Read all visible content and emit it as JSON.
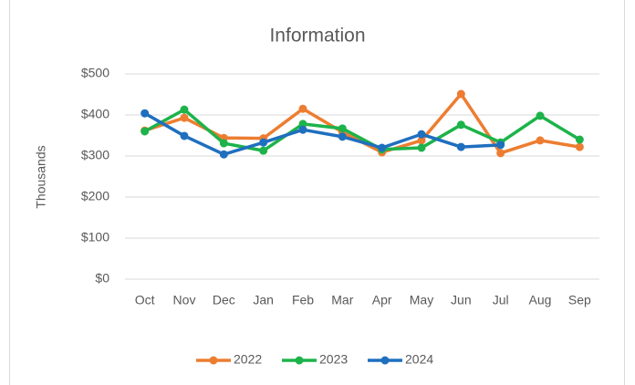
{
  "chart_data": {
    "type": "line",
    "title": "Information",
    "y_label": "Thousands",
    "categories": [
      "Oct",
      "Nov",
      "Dec",
      "Jan",
      "Feb",
      "Mar",
      "Apr",
      "May",
      "Jun",
      "Jul",
      "Aug",
      "Sep"
    ],
    "series": [
      {
        "name": "2022",
        "color": "#ed7d31",
        "values": [
          362,
          393,
          344,
          343,
          415,
          358,
          309,
          338,
          451,
          307,
          338,
          322
        ]
      },
      {
        "name": "2023",
        "color": "#1db34a",
        "values": [
          360,
          413,
          331,
          313,
          378,
          367,
          316,
          320,
          376,
          333,
          398,
          340
        ]
      },
      {
        "name": "2024",
        "color": "#1f6fbf",
        "values": [
          404,
          349,
          304,
          333,
          364,
          347,
          320,
          353,
          322,
          327,
          null,
          null
        ]
      }
    ],
    "ylim": [
      0,
      500
    ],
    "yticks": [
      {
        "value": 0,
        "label": "$0"
      },
      {
        "value": 100,
        "label": "$100"
      },
      {
        "value": 200,
        "label": "$200"
      },
      {
        "value": 300,
        "label": "$300"
      },
      {
        "value": 400,
        "label": "$400"
      },
      {
        "value": 500,
        "label": "$500"
      }
    ],
    "grid": true,
    "legend": "bottom"
  }
}
